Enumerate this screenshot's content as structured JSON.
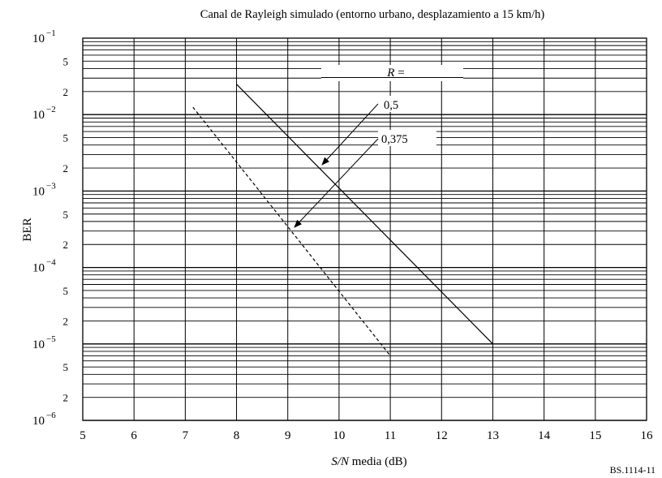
{
  "chart_data": {
    "type": "line",
    "title": "Canal de Rayleigh simulado (entorno urbano, desplazamiento a 15 km/h)",
    "xlabel_italic": "S/N",
    "xlabel_rest": " media (dB)",
    "ylabel": "BER",
    "figure_id": "BS.1114-11",
    "xlim": [
      5,
      16
    ],
    "ylim": [
      1e-06,
      0.1
    ],
    "yscale": "log",
    "grid": true,
    "x_ticks": [
      5,
      6,
      7,
      8,
      9,
      10,
      11,
      12,
      13,
      14,
      15,
      16
    ],
    "y_decade_exponents": [
      "−1",
      "−2",
      "−3",
      "−4",
      "−5",
      "−6"
    ],
    "y_minor_labels": [
      "5",
      "2"
    ],
    "legend_header_italic": "R",
    "legend_header_rest": " =",
    "series": [
      {
        "name": "0,5",
        "style": "solid",
        "x": [
          8,
          13
        ],
        "y": [
          0.025,
          1e-05
        ]
      },
      {
        "name": "0,375",
        "style": "dashed",
        "x": [
          7.15,
          11
        ],
        "y": [
          0.0125,
          7e-06
        ]
      }
    ]
  }
}
